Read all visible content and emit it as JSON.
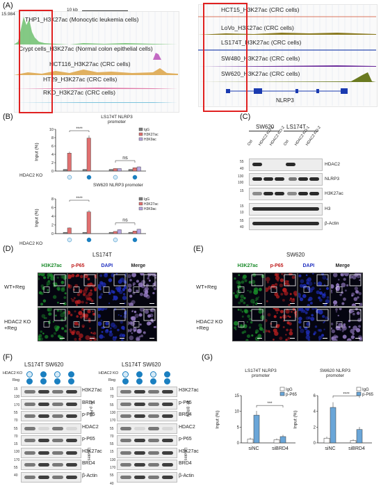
{
  "panels": {
    "A": "(A)",
    "B": "(B)",
    "C": "(C)",
    "D": "(D)",
    "E": "(E)",
    "F": "(F)",
    "G": "(G)"
  },
  "A_left": {
    "ymax": "15.984",
    "scale": "10 kb",
    "tracks": [
      {
        "label": "THP1_H3K27ac (Monocytic leukemia cells)",
        "color": "#3a9a3a"
      },
      {
        "label": "Crypt cells_H3K27ac (Normal colon epithelial cells)",
        "color": "#b03ab0"
      },
      {
        "label": "HCT116_H3K27ac (CRC cells)",
        "color": "#d79a2a"
      },
      {
        "label": "HT29_H3K27ac (CRC cells)",
        "color": "#d4548a"
      },
      {
        "label": "RKO_H3K27ac (CRC cells)",
        "color": "#4aa0c0"
      }
    ]
  },
  "A_right": {
    "tracks": [
      {
        "label": "HCT15_H3K27ac (CRC cells)",
        "color": "#d04a2a"
      },
      {
        "label": "LoVo_H3K27ac (CRC cells)",
        "color": "#8a7a20"
      },
      {
        "label": "LS174T_H3K27ac (CRC cells)",
        "color": "#2a4ab0"
      },
      {
        "label": "SW480_H3K27ac (CRC cells)",
        "color": "#6a2a9a"
      },
      {
        "label": "SW620_H3K27ac (CRC cells)",
        "color": "#7a7a20"
      }
    ],
    "gene": "NLRP3"
  },
  "B": {
    "chart1_title": "LS174T NLRP3 promoter",
    "chart2_title": "SW620 NLRP3 promoter",
    "ylabel": "Input (%)",
    "xrow_label": "HDAC2 KO",
    "sig1": "****",
    "ns": "ns",
    "legend": [
      "IgG",
      "H3K27ac",
      "H3K9ac"
    ],
    "chart1_y": [
      "10",
      "8",
      "6",
      "4",
      "2",
      "0"
    ],
    "chart2_y": [
      "8",
      "6",
      "4",
      "2",
      "0"
    ]
  },
  "C": {
    "group1": "SW620",
    "group2": "LS174T",
    "lanes": [
      "Ctrl",
      "HDAC2 KO-1",
      "HDAC2 KO-2",
      "Ctrl",
      "HDAC2 KO-1",
      "HDAC2 KO-2"
    ],
    "rows": [
      "HDAC2",
      "NLRP3",
      "H3K27ac",
      "H3",
      "β-Actin"
    ],
    "mw": [
      "55",
      "40",
      "130",
      "100",
      "15",
      "15",
      "10",
      "55",
      "40"
    ]
  },
  "D": {
    "title": "LS174T",
    "cols": [
      "H3K27ac",
      "p-P65",
      "DAPI",
      "Merge"
    ],
    "rows": [
      "WT+Reg",
      "HDAC2 KO +Reg"
    ]
  },
  "E": {
    "title": "SW620",
    "cols": [
      "H3K27ac",
      "p-P65",
      "DAPI",
      "Merge"
    ],
    "rows": [
      "WT+Reg",
      "HDAC2 KO +Reg"
    ]
  },
  "F": {
    "cells": "LS174T SW620",
    "row1": "HDAC2 KO",
    "row2": "Reg",
    "left_rows": [
      "H3K27ac",
      "BRD4",
      "p-P65",
      "HDAC2",
      "p-P65",
      "H3K27ac",
      "BRD4",
      "β-Actin"
    ],
    "right_rows": [
      "H3K27ac",
      "p-P65",
      "BRD4",
      "HDAC2",
      "p-P65",
      "H3K27ac",
      "BRD4",
      "β-Actin"
    ],
    "ip_left": "IP: p-P65",
    "ip_right": "IP: BRD4",
    "lysates": "Lysates",
    "mw_left": [
      "15",
      "130",
      "170",
      "55",
      "70",
      "55",
      "70",
      "15",
      "130",
      "170",
      "55",
      "40"
    ],
    "mw_right": [
      "15",
      "70",
      "55",
      "130",
      "170",
      "55",
      "70",
      "55",
      "15",
      "130",
      "170",
      "55",
      "40"
    ]
  },
  "G": {
    "chart1_title": "LS174T NLRP3 promoter",
    "chart2_title": "SW620 NLRP3 promoter",
    "ylabel": "Input (%)",
    "sig1": "***",
    "sig2": "****",
    "legend": [
      "IgG",
      "p-P65"
    ],
    "x": [
      "siNC",
      "siBRD4"
    ],
    "chart1_y": [
      "15",
      "10",
      "5",
      "0"
    ],
    "chart2_y": [
      "6",
      "4",
      "2",
      "0"
    ]
  },
  "chart_data": [
    {
      "type": "bar",
      "title": "LS174T NLRP3 promoter",
      "ylabel": "Input (%)",
      "ylim": [
        0,
        10
      ],
      "categories": [
        "Ctrl",
        "HDAC2 KO",
        "Ctrl",
        "HDAC2 KO"
      ],
      "series": [
        {
          "name": "IgG",
          "values": [
            0.4,
            0.4,
            0.4,
            0.4
          ],
          "color": "#7d7d7d"
        },
        {
          "name": "H3K27ac",
          "values": [
            4.3,
            7.9,
            0.6,
            0.8
          ],
          "color": "#e07070"
        },
        {
          "name": "H3K9ac",
          "values": [
            0,
            0,
            0.6,
            1.0
          ],
          "color": "#b7a6e0"
        }
      ]
    },
    {
      "type": "bar",
      "title": "SW620 NLRP3 promoter",
      "ylabel": "Input (%)",
      "ylim": [
        0,
        8
      ],
      "categories": [
        "Ctrl",
        "HDAC2 KO",
        "Ctrl",
        "HDAC2 KO"
      ],
      "series": [
        {
          "name": "IgG",
          "values": [
            0.3,
            0.3,
            0.3,
            0.3
          ],
          "color": "#7d7d7d"
        },
        {
          "name": "H3K27ac",
          "values": [
            1.3,
            5.0,
            0.5,
            0.6
          ],
          "color": "#e07070"
        },
        {
          "name": "H3K9ac",
          "values": [
            0,
            0,
            0.9,
            1.0
          ],
          "color": "#b7a6e0"
        }
      ]
    },
    {
      "type": "bar",
      "title": "LS174T NLRP3 promoter",
      "ylabel": "Input (%)",
      "ylim": [
        0,
        15
      ],
      "categories": [
        "siNC",
        "siBRD4"
      ],
      "series": [
        {
          "name": "IgG",
          "values": [
            1.2,
            1.0
          ],
          "color": "#ffffff"
        },
        {
          "name": "p-P65",
          "values": [
            8.8,
            2.0
          ],
          "color": "#6aa6d8"
        }
      ]
    },
    {
      "type": "bar",
      "title": "SW620 NLRP3 promoter",
      "ylabel": "Input (%)",
      "ylim": [
        0,
        6
      ],
      "categories": [
        "siNC",
        "siBRD4"
      ],
      "series": [
        {
          "name": "IgG",
          "values": [
            0.6,
            0.3
          ],
          "color": "#ffffff"
        },
        {
          "name": "p-P65",
          "values": [
            4.5,
            1.7
          ],
          "color": "#6aa6d8"
        }
      ]
    }
  ]
}
